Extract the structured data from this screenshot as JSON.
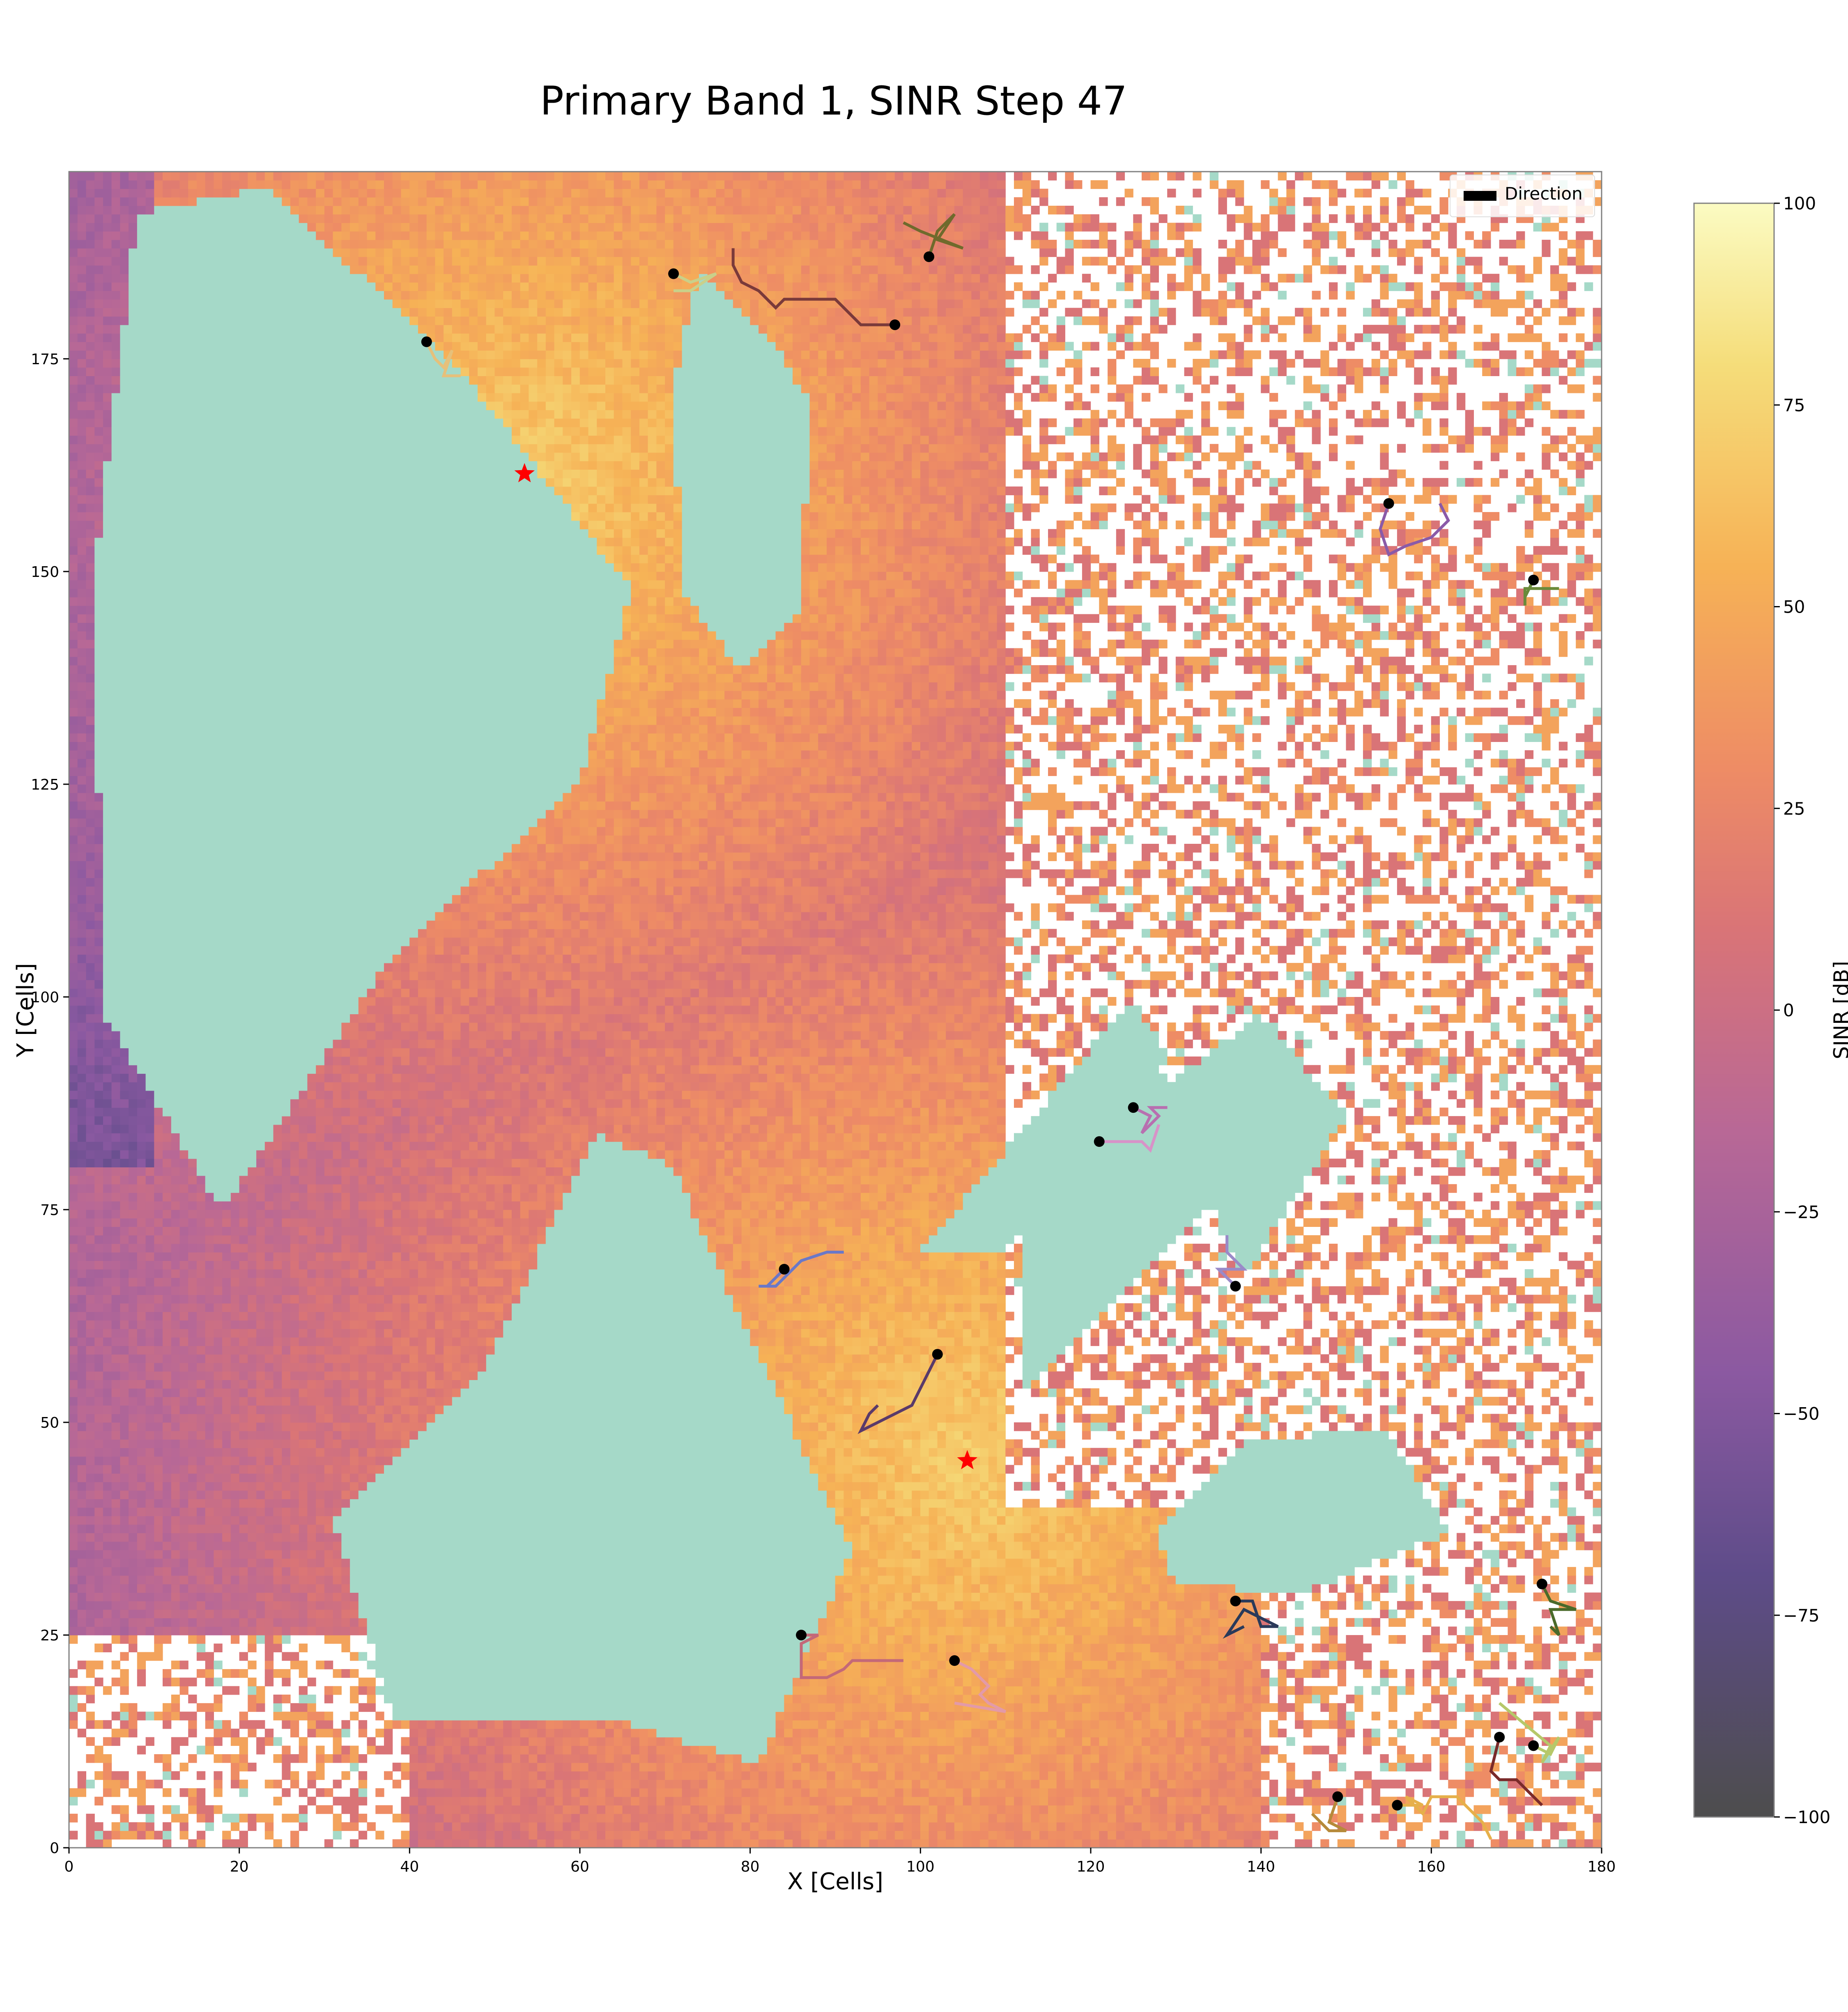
{
  "chart_data": {
    "type": "heatmap",
    "title": "Primary Band 1, SINR Step 47",
    "xlabel": "X [Cells]",
    "ylabel": "Y [Cells]",
    "xlim": [
      0,
      180
    ],
    "ylim": [
      0,
      197
    ],
    "x_ticks": [
      "0",
      "20",
      "40",
      "60",
      "80",
      "100",
      "120",
      "140",
      "160",
      "180"
    ],
    "y_ticks": [
      "0",
      "25",
      "50",
      "75",
      "100",
      "125",
      "150",
      "175"
    ],
    "colorbar": {
      "label": "SINR [dB]",
      "range": [
        -100,
        100
      ],
      "ticks": [
        "100",
        "75",
        "50",
        "25",
        "0",
        "−25",
        "−50",
        "−75",
        "−100"
      ],
      "stops": [
        {
          "value": -100,
          "color": "#4d4d4d"
        },
        {
          "value": -70,
          "color": "#5e4c89"
        },
        {
          "value": -45,
          "color": "#8b59a1"
        },
        {
          "value": -15,
          "color": "#b86896"
        },
        {
          "value": 10,
          "color": "#d97477"
        },
        {
          "value": 30,
          "color": "#ee8c65"
        },
        {
          "value": 55,
          "color": "#f6b256"
        },
        {
          "value": 80,
          "color": "#f5dd7a"
        },
        {
          "value": 100,
          "color": "#fbfbc2"
        }
      ]
    },
    "legend": {
      "position": "top-right",
      "entries": [
        "Direction"
      ]
    },
    "transmitters": [
      {
        "x": 53.5,
        "y": 161.5
      },
      {
        "x": 105.5,
        "y": 45.5
      }
    ],
    "agents": [
      {
        "x": 42,
        "y": 177,
        "path": [
          [
            42,
            177
          ],
          [
            43,
            175
          ],
          [
            44,
            174
          ],
          [
            45,
            176
          ],
          [
            44,
            173
          ],
          [
            46,
            173
          ]
        ],
        "color": "#e6c07a"
      },
      {
        "x": 71,
        "y": 185,
        "path": [
          [
            71,
            185
          ],
          [
            73,
            184
          ],
          [
            76,
            185
          ],
          [
            73,
            183
          ],
          [
            71,
            183
          ]
        ],
        "color": "#c9d08a"
      },
      {
        "x": 97,
        "y": 179,
        "path": [
          [
            97,
            179
          ],
          [
            93,
            179
          ],
          [
            90,
            182
          ],
          [
            84,
            182
          ],
          [
            83,
            181
          ],
          [
            81,
            183
          ],
          [
            79,
            184
          ],
          [
            78,
            186
          ],
          [
            78,
            188
          ]
        ],
        "color": "#7a3a3a"
      },
      {
        "x": 101,
        "y": 187,
        "path": [
          [
            101,
            187
          ],
          [
            102,
            190
          ],
          [
            104,
            192
          ],
          [
            102,
            189
          ],
          [
            105,
            188
          ],
          [
            100,
            190
          ],
          [
            98,
            191
          ]
        ],
        "color": "#6f6a2c"
      },
      {
        "x": 155,
        "y": 158,
        "path": [
          [
            155,
            158
          ],
          [
            154,
            155
          ],
          [
            155,
            152
          ],
          [
            157,
            153
          ],
          [
            160,
            154
          ],
          [
            162,
            156
          ],
          [
            161,
            158
          ]
        ],
        "color": "#8a5aa8"
      },
      {
        "x": 172,
        "y": 149,
        "path": [
          [
            172,
            149
          ],
          [
            171,
            147
          ],
          [
            171,
            148
          ],
          [
            175,
            148
          ],
          [
            171,
            148
          ],
          [
            171,
            146
          ]
        ],
        "color": "#6a8a3a"
      },
      {
        "x": 125,
        "y": 87,
        "path": [
          [
            125,
            87
          ],
          [
            127,
            86
          ],
          [
            126,
            84
          ],
          [
            128,
            86
          ],
          [
            127,
            87
          ],
          [
            129,
            87
          ]
        ],
        "color": "#b86fb0"
      },
      {
        "x": 121,
        "y": 83,
        "path": [
          [
            121,
            83
          ],
          [
            123,
            83
          ],
          [
            126,
            83
          ],
          [
            127,
            82
          ],
          [
            128,
            85
          ]
        ],
        "color": "#d892c8"
      },
      {
        "x": 137,
        "y": 66,
        "path": [
          [
            137,
            66
          ],
          [
            135,
            68
          ],
          [
            138,
            68
          ],
          [
            136,
            70
          ],
          [
            136,
            72
          ]
        ],
        "color": "#9a8ac8"
      },
      {
        "x": 84,
        "y": 68,
        "path": [
          [
            84,
            68
          ],
          [
            83,
            67
          ],
          [
            82,
            66
          ],
          [
            81,
            66
          ],
          [
            83,
            66
          ],
          [
            86,
            69
          ],
          [
            89,
            70
          ],
          [
            91,
            70
          ]
        ],
        "color": "#6a78c8"
      },
      {
        "x": 102,
        "y": 58,
        "path": [
          [
            102,
            58
          ],
          [
            100,
            54
          ],
          [
            99,
            52
          ],
          [
            97,
            51
          ],
          [
            95,
            50
          ],
          [
            93,
            49
          ],
          [
            94,
            51
          ],
          [
            95,
            52
          ]
        ],
        "color": "#5a3a6a"
      },
      {
        "x": 137,
        "y": 29,
        "path": [
          [
            137,
            29
          ],
          [
            139,
            29
          ],
          [
            140,
            26
          ],
          [
            142,
            26
          ],
          [
            138,
            28
          ],
          [
            136,
            25
          ],
          [
            138,
            26
          ]
        ],
        "color": "#2a3a5a"
      },
      {
        "x": 86,
        "y": 25,
        "path": [
          [
            86,
            25
          ],
          [
            87,
            25
          ],
          [
            88,
            25
          ],
          [
            86,
            24
          ],
          [
            86,
            22
          ],
          [
            86,
            20
          ],
          [
            89,
            20
          ],
          [
            91,
            21
          ],
          [
            92,
            22
          ],
          [
            97,
            22
          ],
          [
            98,
            22
          ]
        ],
        "color": "#c46878"
      },
      {
        "x": 104,
        "y": 22,
        "path": [
          [
            104,
            22
          ],
          [
            106,
            21
          ],
          [
            108,
            19
          ],
          [
            107,
            18
          ],
          [
            108,
            17
          ],
          [
            110,
            16
          ],
          [
            104,
            17
          ]
        ],
        "color": "#e39aa8"
      },
      {
        "x": 173,
        "y": 31,
        "path": [
          [
            173,
            31
          ],
          [
            174,
            29
          ],
          [
            177,
            28
          ],
          [
            174,
            28
          ],
          [
            175,
            25
          ],
          [
            174,
            26
          ]
        ],
        "color": "#4a6a2a"
      },
      {
        "x": 168,
        "y": 13,
        "path": [
          [
            168,
            13
          ],
          [
            167,
            9
          ],
          [
            168,
            8
          ],
          [
            170,
            8
          ],
          [
            172,
            6
          ],
          [
            173,
            5
          ],
          [
            171,
            7
          ]
        ],
        "color": "#7a2a2a"
      },
      {
        "x": 172,
        "y": 12,
        "path": [
          [
            172,
            12
          ],
          [
            174,
            11
          ],
          [
            175,
            13
          ],
          [
            173,
            10
          ],
          [
            174,
            12
          ],
          [
            168,
            17
          ]
        ],
        "color": "#b6c86a"
      },
      {
        "x": 149,
        "y": 6,
        "path": [
          [
            149,
            6
          ],
          [
            148,
            3
          ],
          [
            150,
            2
          ],
          [
            148,
            2
          ],
          [
            146,
            4
          ],
          [
            147,
            3
          ]
        ],
        "color": "#b68a3a"
      },
      {
        "x": 156,
        "y": 5,
        "path": [
          [
            156,
            5
          ],
          [
            159,
            5
          ],
          [
            157,
            6
          ],
          [
            159,
            4
          ],
          [
            160,
            6
          ],
          [
            163,
            6
          ],
          [
            166,
            3
          ],
          [
            167,
            1
          ]
        ],
        "color": "#e6b04a"
      }
    ]
  }
}
